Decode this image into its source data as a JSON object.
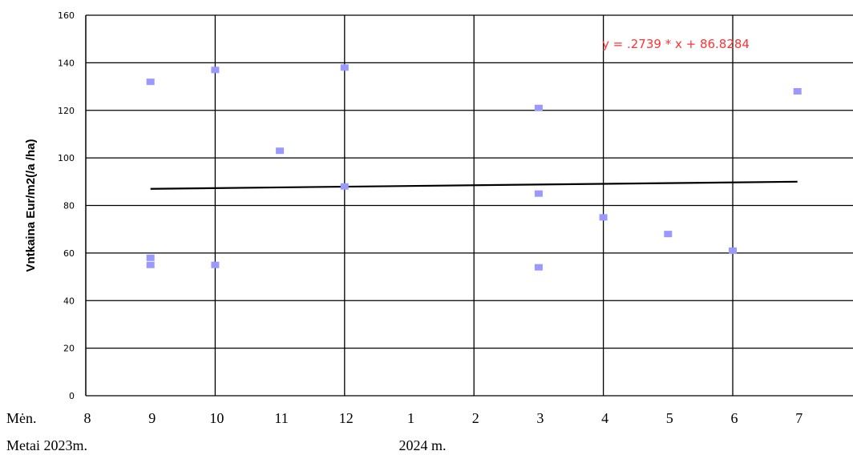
{
  "chart_data": {
    "type": "scatter",
    "title": "",
    "ylabel": "Vntkaina Eur/m2(/a /ha)",
    "ylim": [
      0,
      160
    ],
    "yticks": [
      0,
      20,
      40,
      60,
      80,
      100,
      120,
      140,
      160
    ],
    "x_month_labels": [
      "8",
      "9",
      "10",
      "11",
      "12",
      "1",
      "2",
      "3",
      "4",
      "5",
      "6",
      "7"
    ],
    "x_row_month_title": "Mėn.",
    "x_row_year_title": "Metai 2023m.",
    "x_year_2024_label": "2024 m.",
    "xlim": [
      0,
      12
    ],
    "points": [
      {
        "x": 1,
        "y": 132
      },
      {
        "x": 1,
        "y": 58
      },
      {
        "x": 1,
        "y": 55
      },
      {
        "x": 2,
        "y": 137
      },
      {
        "x": 2,
        "y": 55
      },
      {
        "x": 3,
        "y": 103
      },
      {
        "x": 4,
        "y": 138
      },
      {
        "x": 4,
        "y": 88
      },
      {
        "x": 7,
        "y": 121
      },
      {
        "x": 7,
        "y": 85
      },
      {
        "x": 7,
        "y": 54
      },
      {
        "x": 8,
        "y": 75
      },
      {
        "x": 9,
        "y": 68
      },
      {
        "x": 10,
        "y": 61
      },
      {
        "x": 11,
        "y": 128
      }
    ],
    "trendline": {
      "equation": "y = .2739 * x + 86.8284",
      "x_start": 1,
      "x_end": 11,
      "y_start": 87,
      "y_end": 90
    },
    "colors": {
      "points": "#9999ff",
      "trendline": "#000000",
      "equation": "#ff3333",
      "grid": "#000000"
    },
    "grid": true
  }
}
